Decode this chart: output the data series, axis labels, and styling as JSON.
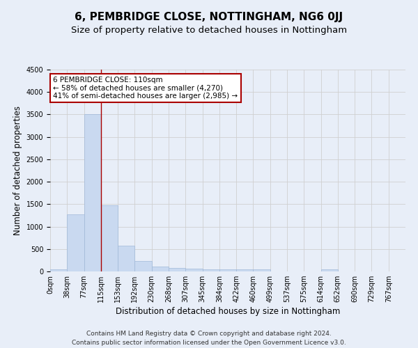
{
  "title": "6, PEMBRIDGE CLOSE, NOTTINGHAM, NG6 0JJ",
  "subtitle": "Size of property relative to detached houses in Nottingham",
  "xlabel": "Distribution of detached houses by size in Nottingham",
  "ylabel": "Number of detached properties",
  "footnote1": "Contains HM Land Registry data © Crown copyright and database right 2024.",
  "footnote2": "Contains public sector information licensed under the Open Government Licence v3.0.",
  "bin_labels": [
    "0sqm",
    "38sqm",
    "77sqm",
    "115sqm",
    "153sqm",
    "192sqm",
    "230sqm",
    "268sqm",
    "307sqm",
    "345sqm",
    "384sqm",
    "422sqm",
    "460sqm",
    "499sqm",
    "537sqm",
    "575sqm",
    "614sqm",
    "652sqm",
    "690sqm",
    "729sqm",
    "767sqm"
  ],
  "bar_values": [
    40,
    1280,
    3500,
    1470,
    575,
    235,
    110,
    80,
    55,
    42,
    42,
    42,
    40,
    0,
    0,
    0,
    50,
    0,
    0,
    0,
    0
  ],
  "bar_color": "#c9d9f0",
  "bar_edge_color": "#a0b8d8",
  "grid_color": "#d0d0d0",
  "background_color": "#e8eef8",
  "vline_x": 3.0,
  "vline_color": "#aa0000",
  "annotation_text": "6 PEMBRIDGE CLOSE: 110sqm\n← 58% of detached houses are smaller (4,270)\n41% of semi-detached houses are larger (2,985) →",
  "annotation_box_color": "#ffffff",
  "annotation_border_color": "#aa0000",
  "ylim": [
    0,
    4500
  ],
  "yticks": [
    0,
    500,
    1000,
    1500,
    2000,
    2500,
    3000,
    3500,
    4000,
    4500
  ],
  "title_fontsize": 11,
  "subtitle_fontsize": 9.5,
  "axis_label_fontsize": 8.5,
  "tick_fontsize": 7,
  "annotation_fontsize": 7.5,
  "footnote_fontsize": 6.5
}
